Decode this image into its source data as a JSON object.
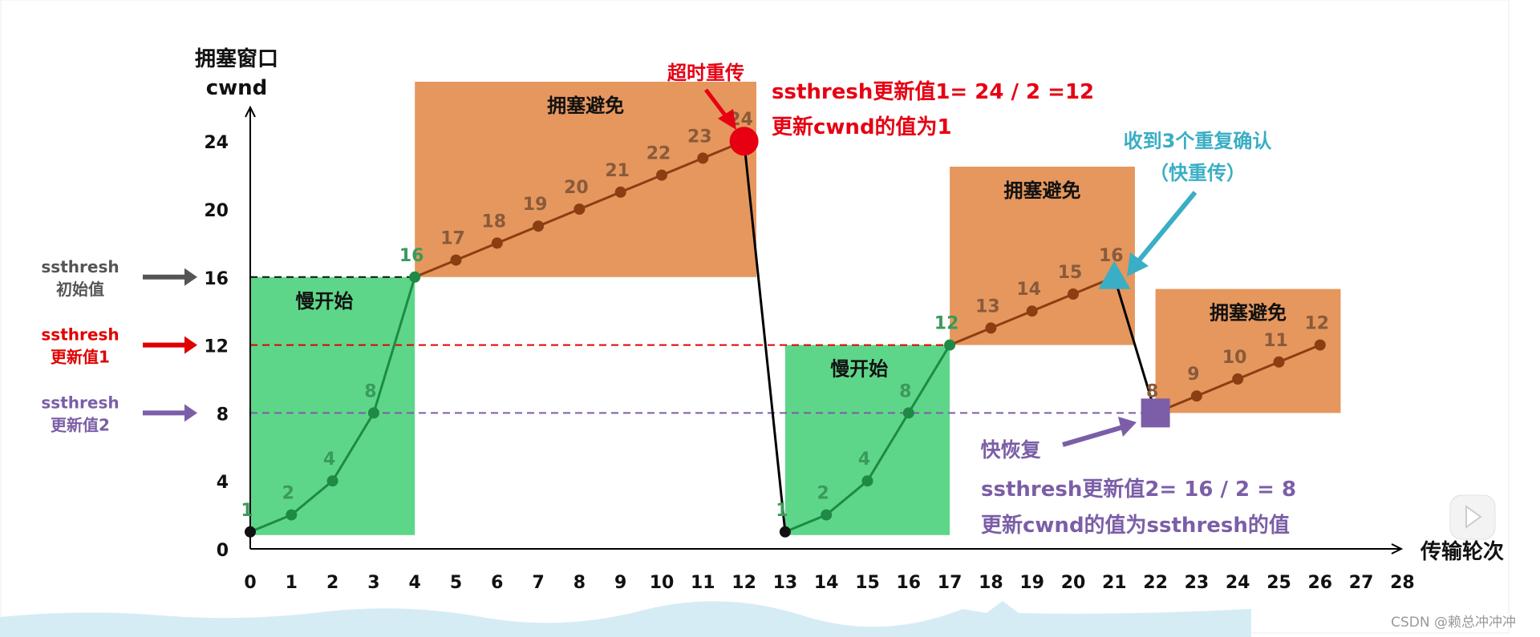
{
  "chart_data": {
    "type": "line",
    "ylabel_line1": "拥塞窗口",
    "ylabel_line2": "cwnd",
    "xlabel": "传输轮次",
    "x_ticks": [
      0,
      1,
      2,
      3,
      4,
      5,
      6,
      7,
      8,
      9,
      10,
      11,
      12,
      13,
      14,
      15,
      16,
      17,
      18,
      19,
      20,
      21,
      22,
      23,
      24,
      25,
      26,
      27,
      28
    ],
    "y_ticks": [
      0,
      4,
      8,
      12,
      16,
      20,
      24
    ],
    "xlim": [
      0,
      28
    ],
    "ylim": [
      0,
      24
    ],
    "grid": false,
    "segments": [
      {
        "phase": "slow-start",
        "x": [
          0,
          1,
          2,
          3,
          4
        ],
        "y": [
          1,
          2,
          4,
          8,
          16
        ],
        "color": "#1e8a45"
      },
      {
        "phase": "congestion-avoidance",
        "x": [
          4,
          5,
          6,
          7,
          8,
          9,
          10,
          11,
          12
        ],
        "y": [
          16,
          17,
          18,
          19,
          20,
          21,
          22,
          23,
          24
        ],
        "color": "#8b3e12"
      },
      {
        "phase": "timeout-drop",
        "x": [
          12,
          13
        ],
        "y": [
          24,
          1
        ],
        "color": "#000000"
      },
      {
        "phase": "slow-start",
        "x": [
          13,
          14,
          15,
          16,
          17
        ],
        "y": [
          1,
          2,
          4,
          8,
          12
        ],
        "color": "#1e8a45"
      },
      {
        "phase": "congestion-avoidance",
        "x": [
          17,
          18,
          19,
          20,
          21
        ],
        "y": [
          12,
          13,
          14,
          15,
          16
        ],
        "color": "#8b3e12"
      },
      {
        "phase": "fast-recovery-drop",
        "x": [
          21,
          22
        ],
        "y": [
          16,
          8
        ],
        "color": "#000000"
      },
      {
        "phase": "congestion-avoidance",
        "x": [
          22,
          23,
          24,
          25,
          26
        ],
        "y": [
          8,
          9,
          10,
          11,
          12
        ],
        "color": "#8b3e12"
      }
    ],
    "regions": [
      {
        "label": "慢开始",
        "x": [
          0,
          4
        ],
        "y": [
          1,
          16
        ],
        "color": "#5ed68a"
      },
      {
        "label": "拥塞避免",
        "x": [
          4,
          12.3
        ],
        "y": [
          16,
          27.5
        ],
        "color": "#e5975e"
      },
      {
        "label": "慢开始",
        "x": [
          13,
          17
        ],
        "y": [
          1,
          12
        ],
        "color": "#5ed68a"
      },
      {
        "label": "拥塞避免",
        "x": [
          17,
          21.5
        ],
        "y": [
          12,
          22.5
        ],
        "color": "#e5975e"
      },
      {
        "label": "拥塞避免",
        "x": [
          22,
          26.5
        ],
        "y": [
          8,
          15.3
        ],
        "color": "#e5975e"
      }
    ],
    "thresholds": [
      {
        "value": 16,
        "label_line1": "ssthresh",
        "label_line2": "初始值",
        "color": "#555555",
        "x_end": 4
      },
      {
        "value": 12,
        "label_line1": "ssthresh",
        "label_line2": "更新值1",
        "color": "#e00000",
        "x_end": 17
      },
      {
        "value": 8,
        "label_line1": "ssthresh",
        "label_line2": "更新值2",
        "color": "#7b5ea7",
        "x_end": 22
      }
    ],
    "markers": [
      {
        "shape": "circle",
        "x": 12,
        "y": 24,
        "color": "#e60012"
      },
      {
        "shape": "triangle",
        "x": 21,
        "y": 16,
        "color": "#3aaec4"
      },
      {
        "shape": "square",
        "x": 22,
        "y": 8,
        "color": "#7b5ea7"
      }
    ],
    "annotations": {
      "timeout": {
        "text": "超时重传",
        "color": "#e60012"
      },
      "timeout_note_1": "ssthresh更新值1= 24 / 2 =12",
      "timeout_note_2": "更新cwnd的值为1",
      "triple_ack_1": "收到3个重复确认",
      "triple_ack_2": "（快重传）",
      "triple_ack_color": "#3aaec4",
      "fast_recovery": "快恢复",
      "fast_recovery_note_1": "ssthresh更新值2= 16 / 2 = 8",
      "fast_recovery_note_2": "更新cwnd的值为ssthresh的值",
      "fast_recovery_color": "#7b5ea7"
    }
  },
  "watermark": "CSDN @赖总冲冲冲",
  "player": {
    "icon": "play-icon"
  }
}
